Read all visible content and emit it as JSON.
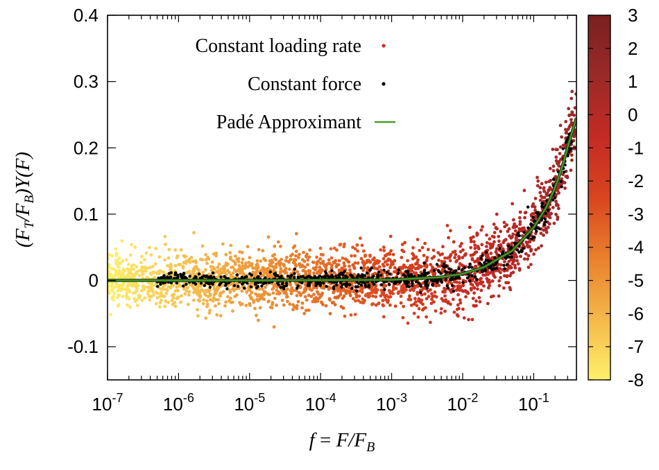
{
  "chart_data": {
    "type": "scatter",
    "xscale": "log",
    "xlim": [
      1e-07,
      0.4
    ],
    "ylim": [
      -0.15,
      0.4
    ],
    "xticks": [
      {
        "value": 1e-07,
        "base": "10",
        "exp": "-7"
      },
      {
        "value": 1e-06,
        "base": "10",
        "exp": "-6"
      },
      {
        "value": 1e-05,
        "base": "10",
        "exp": "-5"
      },
      {
        "value": 0.0001,
        "base": "10",
        "exp": "-4"
      },
      {
        "value": 0.001,
        "base": "10",
        "exp": "-3"
      },
      {
        "value": 0.01,
        "base": "10",
        "exp": "-2"
      },
      {
        "value": 0.1,
        "base": "10",
        "exp": "-1"
      }
    ],
    "yticks": [
      {
        "value": 0.4,
        "label": "0.4"
      },
      {
        "value": 0.3,
        "label": "0.3"
      },
      {
        "value": 0.2,
        "label": "0.2"
      },
      {
        "value": 0.1,
        "label": "0.1"
      },
      {
        "value": 0,
        "label": "0"
      },
      {
        "value": -0.1,
        "label": "-0.1"
      }
    ],
    "xlabel": {
      "f": "f",
      "eq": " = ",
      "F": "F",
      "slash": "/",
      "F2": "F",
      "sub": "B"
    },
    "ylabel": {
      "p1": "(",
      "F1": "F",
      "s1": "T",
      "slash": "/",
      "F2": "F",
      "s2": "B",
      "p2": ")",
      "Y": "Y",
      "p3": "(",
      "F3": "F",
      "p4": ")"
    },
    "legend": {
      "placement": "top-center",
      "entries": [
        {
          "label": "Constant loading rate",
          "marker": "dot",
          "color": "#d42b1c"
        },
        {
          "label": "Constant force",
          "marker": "dot",
          "color": "#000000"
        },
        {
          "label": "Padé Approximant",
          "marker": "line",
          "color": "#4c9a2a"
        }
      ]
    },
    "colorbar": {
      "range": [
        -8,
        3
      ],
      "ticks": [
        {
          "value": 3,
          "label": "3"
        },
        {
          "value": 2,
          "label": "2"
        },
        {
          "value": 1,
          "label": "1"
        },
        {
          "value": 0,
          "label": "0"
        },
        {
          "value": -1,
          "label": "-1"
        },
        {
          "value": -2,
          "label": "-2"
        },
        {
          "value": -3,
          "label": "-3"
        },
        {
          "value": -4,
          "label": "-4"
        },
        {
          "value": -5,
          "label": "-5"
        },
        {
          "value": -6,
          "label": "-6"
        },
        {
          "value": -7,
          "label": "-7"
        },
        {
          "value": -8,
          "label": "-8"
        }
      ],
      "colors": [
        "#fff06a",
        "#f4b84a",
        "#e9802d",
        "#d8451f",
        "#c42a24",
        "#9a2a28",
        "#7a2020"
      ]
    },
    "series": [
      {
        "name": "Constant loading rate",
        "kind": "scatter",
        "color_by_log10_f": true,
        "noise_sd_small_f": 0.02,
        "noise_sd_large_f": 0.035
      },
      {
        "name": "Constant force",
        "kind": "scatter",
        "color": "#000000",
        "x_range": [
          5e-07,
          0.35
        ],
        "noise_sd": 0.004
      },
      {
        "name": "Padé Approximant",
        "kind": "line",
        "color": "#4c9a2a",
        "x": [
          1e-07,
          1e-05,
          0.001,
          0.005,
          0.01,
          0.02,
          0.05,
          0.1,
          0.15,
          0.2,
          0.25,
          0.3,
          0.35,
          0.4
        ],
        "y": [
          0,
          0,
          0.001,
          0.005,
          0.01,
          0.02,
          0.045,
          0.08,
          0.11,
          0.14,
          0.17,
          0.2,
          0.225,
          0.245
        ]
      }
    ]
  }
}
